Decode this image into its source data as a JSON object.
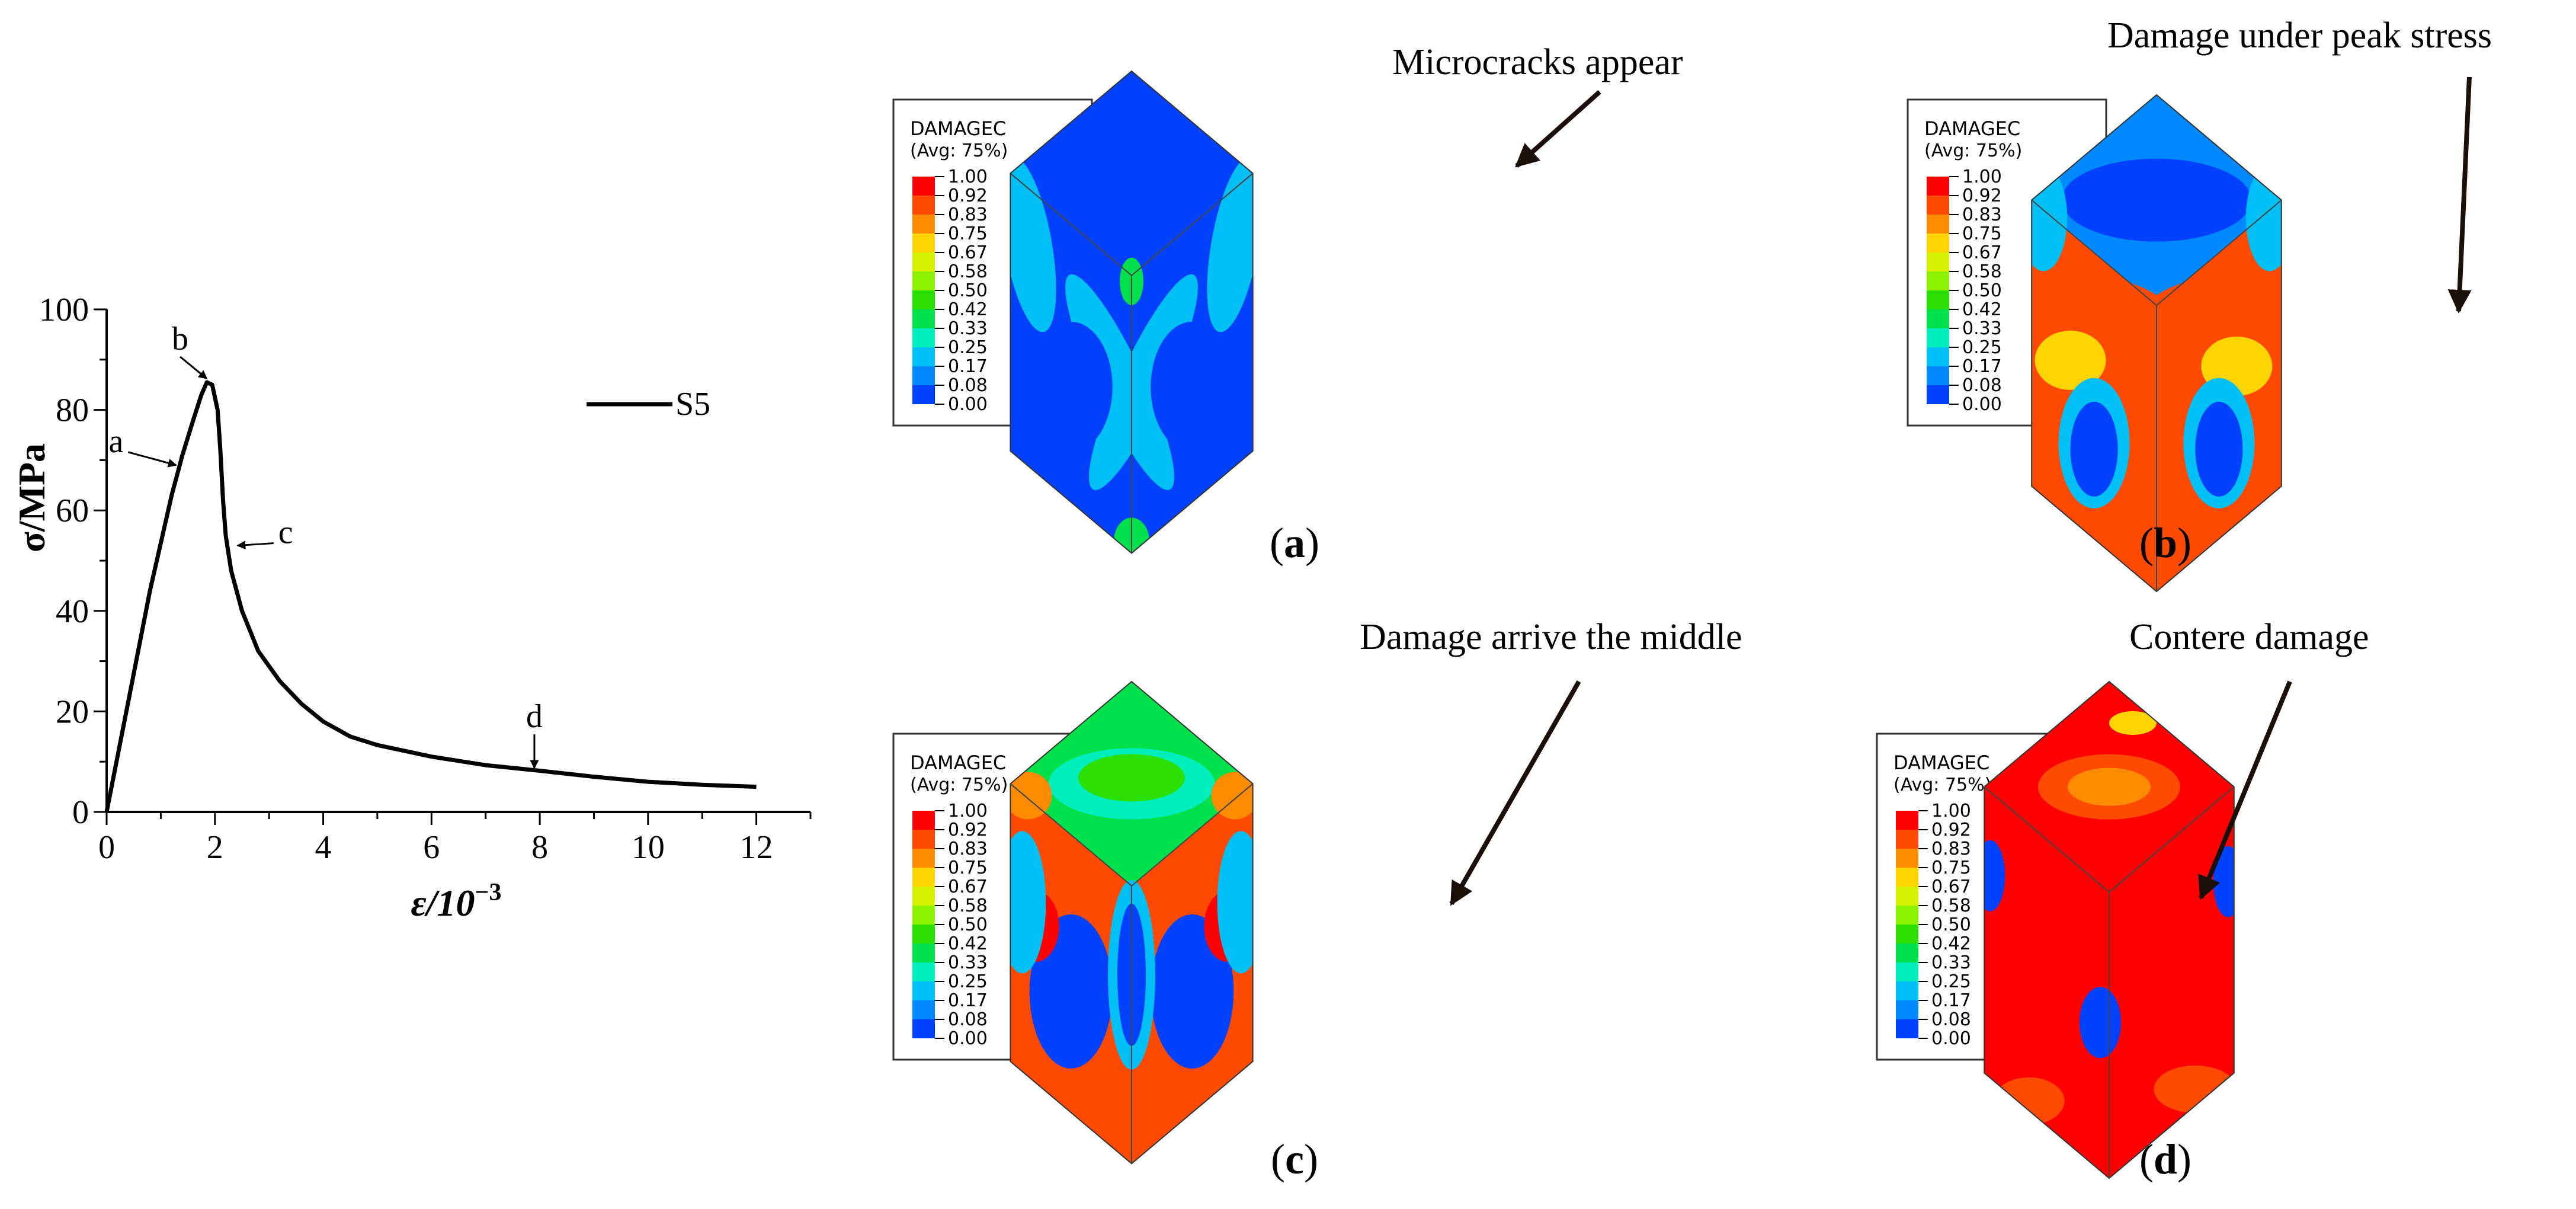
{
  "chart_data": {
    "type": "line",
    "title": "",
    "xlabel": "ε/10",
    "xlabel_exp": "−3",
    "ylabel": "σ/MPa",
    "xlim": [
      0,
      13
    ],
    "ylim": [
      0,
      100
    ],
    "xticks": [
      0,
      2,
      4,
      6,
      8,
      10,
      12
    ],
    "yticks": [
      0,
      20,
      40,
      60,
      80,
      100
    ],
    "grid": false,
    "legend": "top-right",
    "series": [
      {
        "name": "S5",
        "color": "#000000",
        "x": [
          0,
          0.4,
          0.8,
          1.2,
          1.4,
          1.6,
          1.75,
          1.85,
          1.95,
          2.05,
          2.1,
          2.15,
          2.2,
          2.3,
          2.5,
          2.8,
          3.2,
          3.6,
          4.0,
          4.5,
          5.0,
          6.0,
          7.0,
          8.0,
          9.0,
          10.0,
          11.0,
          12.0
        ],
        "y": [
          0,
          22,
          44,
          63,
          71,
          78,
          83,
          85.5,
          85,
          80,
          72,
          62,
          55,
          48,
          40,
          32,
          26,
          21.5,
          18,
          15,
          13.3,
          11,
          9.3,
          8.2,
          7,
          6,
          5.4,
          5
        ]
      }
    ],
    "points": [
      {
        "label": "a",
        "x": 1.35,
        "y": 69
      },
      {
        "label": "b",
        "x": 1.85,
        "y": 85.5
      },
      {
        "label": "c",
        "x": 2.35,
        "y": 53
      },
      {
        "label": "d",
        "x": 7.9,
        "y": 8
      }
    ]
  },
  "contour": {
    "variable": "DAMAGEC",
    "avg": "(Avg: 75%)",
    "levels": [
      "1.00",
      "0.92",
      "0.83",
      "0.75",
      "0.67",
      "0.58",
      "0.50",
      "0.42",
      "0.33",
      "0.25",
      "0.17",
      "0.08",
      "0.00"
    ],
    "colors": [
      "#ff0000",
      "#ff4a00",
      "#ff8c00",
      "#ffd400",
      "#d7f200",
      "#8cf200",
      "#2ae000",
      "#00e04a",
      "#00eebb",
      "#00bff5",
      "#0089ff",
      "#0040ff"
    ]
  },
  "panels": [
    {
      "id": "a",
      "label": "a",
      "annotation": "Microcracks appear"
    },
    {
      "id": "b",
      "label": "b",
      "annotation": "Damage under peak stress"
    },
    {
      "id": "c",
      "label": "c",
      "annotation": "Damage arrive the middle"
    },
    {
      "id": "d",
      "label": "d",
      "annotation": "Contere damage"
    }
  ]
}
